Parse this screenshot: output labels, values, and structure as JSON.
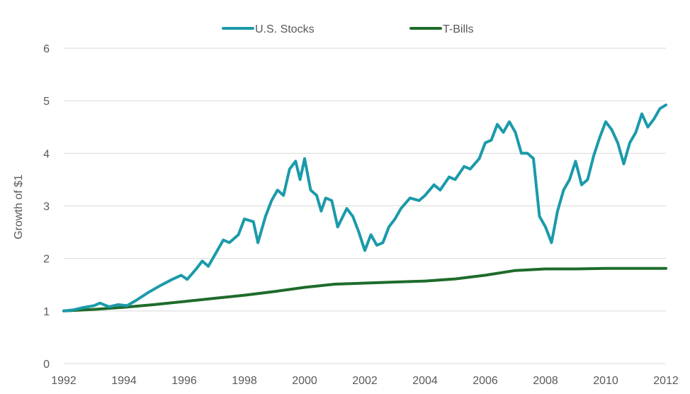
{
  "chart_data": {
    "type": "line",
    "title": "",
    "xlabel": "",
    "ylabel": "Growth of $1",
    "xlim": [
      1992,
      2012
    ],
    "ylim": [
      0,
      6
    ],
    "x_ticks": [
      1992,
      1994,
      1996,
      1998,
      2000,
      2002,
      2004,
      2006,
      2008,
      2010,
      2012
    ],
    "y_ticks": [
      0,
      1,
      2,
      3,
      4,
      5,
      6
    ],
    "grid": true,
    "legend_position": "top",
    "colors": {
      "U.S. Stocks": "#1b9aaa",
      "T-Bills": "#1e6b2a"
    },
    "series": [
      {
        "name": "U.S. Stocks",
        "points": [
          [
            1992.0,
            1.0
          ],
          [
            1992.3,
            1.02
          ],
          [
            1992.6,
            1.06
          ],
          [
            1993.0,
            1.1
          ],
          [
            1993.2,
            1.15
          ],
          [
            1993.5,
            1.08
          ],
          [
            1993.8,
            1.12
          ],
          [
            1994.1,
            1.1
          ],
          [
            1994.4,
            1.2
          ],
          [
            1994.8,
            1.35
          ],
          [
            1995.2,
            1.48
          ],
          [
            1995.6,
            1.6
          ],
          [
            1995.9,
            1.68
          ],
          [
            1996.1,
            1.6
          ],
          [
            1996.4,
            1.8
          ],
          [
            1996.6,
            1.95
          ],
          [
            1996.8,
            1.85
          ],
          [
            1997.0,
            2.05
          ],
          [
            1997.3,
            2.35
          ],
          [
            1997.5,
            2.3
          ],
          [
            1997.8,
            2.45
          ],
          [
            1998.0,
            2.75
          ],
          [
            1998.3,
            2.7
          ],
          [
            1998.45,
            2.3
          ],
          [
            1998.7,
            2.8
          ],
          [
            1998.9,
            3.1
          ],
          [
            1999.1,
            3.3
          ],
          [
            1999.3,
            3.2
          ],
          [
            1999.5,
            3.7
          ],
          [
            1999.7,
            3.85
          ],
          [
            1999.85,
            3.5
          ],
          [
            2000.0,
            3.9
          ],
          [
            2000.2,
            3.3
          ],
          [
            2000.4,
            3.2
          ],
          [
            2000.55,
            2.9
          ],
          [
            2000.7,
            3.15
          ],
          [
            2000.9,
            3.1
          ],
          [
            2001.1,
            2.6
          ],
          [
            2001.4,
            2.95
          ],
          [
            2001.6,
            2.8
          ],
          [
            2001.8,
            2.5
          ],
          [
            2002.0,
            2.15
          ],
          [
            2002.2,
            2.45
          ],
          [
            2002.4,
            2.25
          ],
          [
            2002.6,
            2.3
          ],
          [
            2002.8,
            2.6
          ],
          [
            2003.0,
            2.75
          ],
          [
            2003.2,
            2.95
          ],
          [
            2003.5,
            3.15
          ],
          [
            2003.8,
            3.1
          ],
          [
            2004.0,
            3.2
          ],
          [
            2004.3,
            3.4
          ],
          [
            2004.5,
            3.3
          ],
          [
            2004.8,
            3.55
          ],
          [
            2005.0,
            3.5
          ],
          [
            2005.3,
            3.75
          ],
          [
            2005.5,
            3.7
          ],
          [
            2005.8,
            3.9
          ],
          [
            2006.0,
            4.2
          ],
          [
            2006.2,
            4.25
          ],
          [
            2006.4,
            4.55
          ],
          [
            2006.6,
            4.4
          ],
          [
            2006.8,
            4.6
          ],
          [
            2007.0,
            4.4
          ],
          [
            2007.2,
            4.0
          ],
          [
            2007.4,
            4.0
          ],
          [
            2007.6,
            3.9
          ],
          [
            2007.8,
            2.8
          ],
          [
            2008.0,
            2.6
          ],
          [
            2008.2,
            2.3
          ],
          [
            2008.4,
            2.9
          ],
          [
            2008.6,
            3.3
          ],
          [
            2008.8,
            3.5
          ],
          [
            2009.0,
            3.85
          ],
          [
            2009.2,
            3.4
          ],
          [
            2009.4,
            3.5
          ],
          [
            2009.6,
            3.95
          ],
          [
            2009.8,
            4.3
          ],
          [
            2010.0,
            4.6
          ],
          [
            2010.2,
            4.45
          ],
          [
            2010.4,
            4.2
          ],
          [
            2010.6,
            3.8
          ],
          [
            2010.8,
            4.2
          ],
          [
            2011.0,
            4.4
          ],
          [
            2011.2,
            4.75
          ],
          [
            2011.4,
            4.5
          ],
          [
            2011.6,
            4.65
          ],
          [
            2011.8,
            4.85
          ],
          [
            2012.0,
            4.92
          ]
        ]
      },
      {
        "name": "T-Bills",
        "points": [
          [
            1992,
            1.0
          ],
          [
            1993,
            1.03
          ],
          [
            1994,
            1.07
          ],
          [
            1995,
            1.12
          ],
          [
            1996,
            1.18
          ],
          [
            1997,
            1.24
          ],
          [
            1998,
            1.3
          ],
          [
            1999,
            1.37
          ],
          [
            2000,
            1.45
          ],
          [
            2001,
            1.51
          ],
          [
            2002,
            1.53
          ],
          [
            2003,
            1.55
          ],
          [
            2004,
            1.57
          ],
          [
            2005,
            1.61
          ],
          [
            2006,
            1.68
          ],
          [
            2007,
            1.77
          ],
          [
            2008,
            1.8
          ],
          [
            2009,
            1.8
          ],
          [
            2010,
            1.81
          ],
          [
            2011,
            1.81
          ],
          [
            2012,
            1.81
          ]
        ]
      }
    ]
  }
}
